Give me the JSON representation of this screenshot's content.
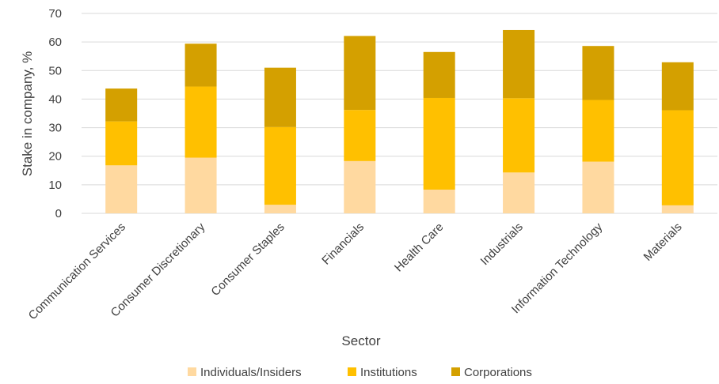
{
  "chart_data": {
    "type": "bar",
    "stacked": true,
    "categories": [
      "Communication Services",
      "Consumer Discretionary",
      "Consumer Staples",
      "Financials",
      "Health Care",
      "Industrials",
      "Information Technology",
      "Materials"
    ],
    "series": [
      {
        "name": "Individuals/Insiders",
        "color": "#ffd9a0",
        "values": [
          16.8,
          19.5,
          3.0,
          18.3,
          8.3,
          14.3,
          18.1,
          2.8
        ]
      },
      {
        "name": "Institutions",
        "color": "#ffc000",
        "values": [
          15.4,
          24.9,
          27.2,
          17.9,
          32.1,
          26.0,
          21.6,
          33.3
        ]
      },
      {
        "name": "Corporations",
        "color": "#d4a000",
        "values": [
          11.5,
          15.0,
          20.8,
          25.9,
          16.1,
          23.9,
          18.9,
          16.8
        ]
      }
    ],
    "xlabel": "Sector",
    "ylabel": "Stake in company, %",
    "ylim": [
      0,
      70
    ],
    "yticks": [
      0,
      10,
      20,
      30,
      40,
      50,
      60,
      70
    ],
    "grid": true,
    "legend_position": "bottom"
  }
}
